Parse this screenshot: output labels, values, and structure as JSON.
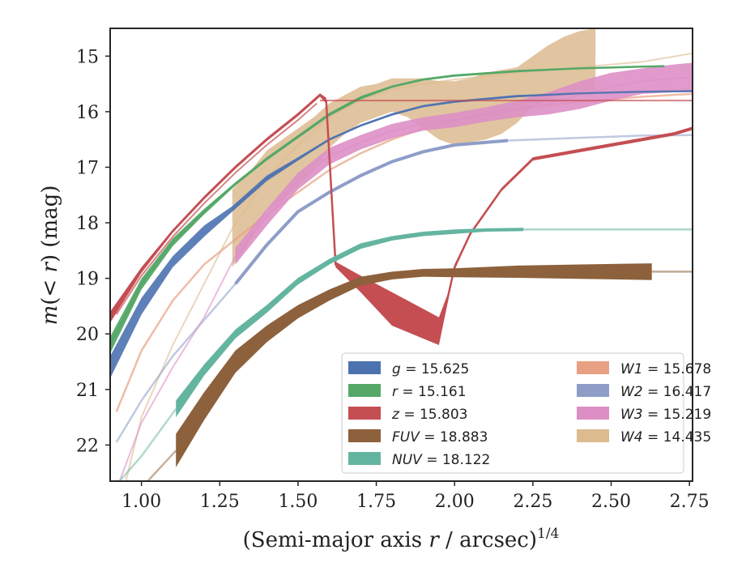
{
  "chart_data": {
    "type": "line",
    "title": "",
    "xlabel": "(Semi-major axis r / arcsec)^{1/4}",
    "xlabel_parts": {
      "main": "(Semi-major axis ",
      "var": "r",
      "mid": " / arcsec)",
      "exp": "1/4"
    },
    "ylabel": "m(<r) (mag)",
    "ylabel_parts": {
      "func": "m",
      "open": "(",
      "lt": "< ",
      "var": "r",
      "close": ")",
      "unit": " (mag)"
    },
    "xlim": [
      0.9,
      2.76
    ],
    "ylim": [
      22.65,
      14.5
    ],
    "y_inverted": true,
    "xticks": [
      "1.00",
      "1.25",
      "1.50",
      "1.75",
      "2.00",
      "2.25",
      "2.50",
      "2.75"
    ],
    "xtick_values": [
      1.0,
      1.25,
      1.5,
      1.75,
      2.0,
      2.25,
      2.5,
      2.75
    ],
    "yticks": [
      "15",
      "16",
      "17",
      "18",
      "19",
      "20",
      "21",
      "22"
    ],
    "ytick_values": [
      15,
      16,
      17,
      18,
      19,
      20,
      21,
      22
    ],
    "grid": false,
    "legend_position": "bottom-right",
    "series": [
      {
        "name": "g",
        "label_value": "15.625",
        "color": "#4c72b0",
        "x": [
          0.9,
          1.0,
          1.1,
          1.2,
          1.29,
          1.4,
          1.5,
          1.6,
          1.7,
          1.8,
          1.9,
          2.0,
          2.2,
          2.4,
          2.6,
          2.76
        ],
        "y": [
          20.6,
          19.5,
          18.7,
          18.15,
          17.75,
          17.2,
          16.85,
          16.5,
          16.25,
          16.05,
          15.9,
          15.82,
          15.72,
          15.67,
          15.64,
          15.63
        ],
        "band_upper": [
          20.4,
          19.35,
          18.6,
          18.05,
          17.7,
          17.15,
          16.82,
          16.48,
          16.23,
          16.03,
          15.88,
          15.8,
          15.7,
          15.66,
          15.63,
          15.62
        ],
        "band_lower": [
          20.8,
          19.65,
          18.8,
          18.25,
          17.8,
          17.25,
          16.88,
          16.52,
          16.27,
          16.07,
          15.92,
          15.84,
          15.74,
          15.68,
          15.65,
          15.64
        ],
        "dim_from_x": 1.29
      },
      {
        "name": "r",
        "label_value": "15.161",
        "color": "#55a868",
        "x": [
          0.9,
          1.0,
          1.1,
          1.2,
          1.3,
          1.4,
          1.5,
          1.6,
          1.7,
          1.8,
          1.9,
          2.0,
          2.2,
          2.4,
          2.6,
          2.67
        ],
        "y": [
          20.2,
          19.1,
          18.35,
          17.8,
          17.3,
          16.85,
          16.45,
          16.05,
          15.75,
          15.55,
          15.42,
          15.35,
          15.27,
          15.22,
          15.19,
          15.18
        ],
        "band_upper": [
          20.05,
          19.0,
          18.28,
          17.75,
          17.27,
          16.82,
          16.42,
          16.02,
          15.72,
          15.53,
          15.4,
          15.33,
          15.25,
          15.21,
          15.18,
          15.17
        ],
        "band_lower": [
          20.35,
          19.2,
          18.42,
          17.85,
          17.33,
          16.88,
          16.48,
          16.08,
          15.78,
          15.57,
          15.44,
          15.37,
          15.29,
          15.23,
          15.2,
          15.19
        ],
        "dim_from_x": 2.2
      },
      {
        "name": "z",
        "label_value": "15.803",
        "color": "#c44e52",
        "x": [
          0.9,
          1.0,
          1.1,
          1.2,
          1.3,
          1.4,
          1.5,
          1.57,
          1.59,
          1.62,
          1.7,
          1.8,
          1.95,
          1.98,
          2.0,
          2.05,
          2.1,
          2.15,
          2.25,
          2.4,
          2.55,
          2.7,
          2.76
        ],
        "y": [
          19.7,
          18.85,
          18.15,
          17.55,
          17.0,
          16.5,
          16.05,
          15.7,
          15.8,
          18.75,
          19.1,
          19.55,
          20.1,
          19.3,
          18.8,
          18.2,
          17.8,
          17.4,
          16.85,
          16.7,
          16.55,
          16.4,
          16.3
        ],
        "band_upper": [
          19.6,
          18.8,
          18.12,
          17.52,
          16.97,
          16.47,
          16.02,
          15.67,
          15.75,
          18.7,
          18.95,
          19.25,
          19.7,
          19.25,
          18.75,
          18.17,
          17.77,
          17.37,
          16.82,
          16.67,
          16.52,
          16.37,
          16.27
        ],
        "band_lower": [
          19.8,
          18.9,
          18.18,
          17.58,
          17.03,
          16.53,
          16.08,
          15.73,
          15.85,
          18.8,
          19.25,
          19.85,
          20.2,
          19.35,
          18.85,
          18.23,
          17.83,
          17.43,
          16.88,
          16.73,
          16.58,
          16.43,
          16.33
        ],
        "flat_line": {
          "y": 15.8,
          "from_x": 1.57,
          "to_x": 2.76
        },
        "secondary": {
          "x": [
            0.92,
            1.0,
            1.1,
            1.2,
            1.3,
            1.4,
            1.5,
            1.56
          ],
          "y": [
            19.65,
            18.95,
            18.25,
            17.65,
            17.1,
            16.6,
            16.15,
            15.85
          ]
        }
      },
      {
        "name": "FUV",
        "label_value": "18.883",
        "color": "#8c613c",
        "x": [
          1.11,
          1.2,
          1.3,
          1.4,
          1.5,
          1.6,
          1.7,
          1.8,
          1.9,
          2.0,
          2.2,
          2.4,
          2.63
        ],
        "y": [
          22.1,
          21.3,
          20.5,
          20.0,
          19.6,
          19.3,
          19.05,
          18.95,
          18.9,
          18.9,
          18.88,
          18.88,
          18.88
        ],
        "band_upper": [
          21.8,
          21.05,
          20.3,
          19.85,
          19.48,
          19.2,
          18.97,
          18.88,
          18.83,
          18.82,
          18.77,
          18.75,
          18.73
        ],
        "band_lower": [
          22.4,
          21.55,
          20.7,
          20.15,
          19.72,
          19.4,
          19.13,
          19.02,
          18.97,
          18.98,
          18.99,
          19.01,
          19.03
        ],
        "dim_lead": {
          "x": [
            1.02,
            1.11
          ],
          "y": [
            22.65,
            22.1
          ]
        },
        "dim_tail": {
          "from_x": 2.63,
          "to_x": 2.76,
          "y": 18.88
        }
      },
      {
        "name": "NUV",
        "label_value": "18.122",
        "color": "#64b5a0",
        "x": [
          1.11,
          1.2,
          1.3,
          1.4,
          1.5,
          1.6,
          1.7,
          1.8,
          1.9,
          2.0,
          2.1,
          2.22
        ],
        "y": [
          21.35,
          20.65,
          20.0,
          19.55,
          19.05,
          18.7,
          18.42,
          18.28,
          18.2,
          18.16,
          18.13,
          18.12
        ],
        "band_upper": [
          21.2,
          20.55,
          19.92,
          19.48,
          18.99,
          18.65,
          18.37,
          18.24,
          18.16,
          18.12,
          18.1,
          18.09
        ],
        "band_lower": [
          21.5,
          20.75,
          20.08,
          19.62,
          19.11,
          18.75,
          18.47,
          18.32,
          18.24,
          18.2,
          18.16,
          18.15
        ],
        "dim_lead": {
          "x": [
            0.93,
            1.0,
            1.11
          ],
          "y": [
            22.65,
            22.2,
            21.35
          ]
        },
        "dim_tail": {
          "from_x": 2.22,
          "to_x": 2.76,
          "y": 18.12
        }
      },
      {
        "name": "W1",
        "label_value": "15.678",
        "color": "#e8a082",
        "x": [
          0.92,
          1.0,
          1.1,
          1.2,
          1.3,
          1.4,
          1.5,
          1.6,
          1.7,
          1.8,
          1.9,
          2.0,
          2.2,
          2.4,
          2.6,
          2.76
        ],
        "y": [
          21.4,
          20.3,
          19.4,
          18.75,
          18.3,
          17.85,
          17.45,
          17.05,
          16.75,
          16.5,
          16.3,
          16.15,
          15.95,
          15.82,
          15.73,
          15.68
        ]
      },
      {
        "name": "W2",
        "label_value": "16.417",
        "color": "#8e9dc8",
        "x": [
          0.92,
          1.0,
          1.1,
          1.2,
          1.3,
          1.4,
          1.5,
          1.6,
          1.7,
          1.8,
          1.9,
          2.0,
          2.17,
          2.4,
          2.6,
          2.76
        ],
        "y": [
          21.95,
          21.2,
          20.4,
          19.75,
          19.1,
          18.4,
          17.8,
          17.45,
          17.15,
          16.9,
          16.72,
          16.6,
          16.52,
          16.47,
          16.43,
          16.42
        ],
        "emph_range": [
          1.29,
          2.17
        ]
      },
      {
        "name": "W3",
        "label_value": "15.219",
        "color": "#dd8fc5",
        "x": [
          0.93,
          1.0,
          1.1,
          1.2,
          1.3,
          1.4,
          1.5,
          1.6,
          1.7,
          1.8,
          1.9,
          2.0,
          2.1,
          2.2,
          2.3,
          2.4,
          2.5,
          2.6,
          2.7,
          2.76
        ],
        "y": [
          22.65,
          21.6,
          20.6,
          19.7,
          18.6,
          17.9,
          17.25,
          16.8,
          16.55,
          16.35,
          16.22,
          16.15,
          16.05,
          15.95,
          15.85,
          15.7,
          15.55,
          15.45,
          15.4,
          15.38
        ],
        "band_upper": [
          null,
          null,
          null,
          null,
          18.45,
          17.75,
          17.1,
          16.65,
          16.42,
          16.22,
          16.1,
          16.02,
          15.92,
          15.8,
          15.65,
          15.45,
          15.3,
          15.22,
          15.15,
          15.12
        ],
        "band_lower": [
          null,
          null,
          null,
          null,
          18.75,
          18.05,
          17.4,
          16.95,
          16.68,
          16.48,
          16.34,
          16.28,
          16.18,
          16.1,
          16.05,
          15.95,
          15.8,
          15.68,
          15.65,
          15.65
        ],
        "band_from_x": 1.3
      },
      {
        "name": "W4",
        "label_value": "14.435",
        "color": "#dcbb8f",
        "x": [
          0.95,
          1.0,
          1.1,
          1.2,
          1.29,
          1.4,
          1.5,
          1.6,
          1.7,
          1.8,
          1.9,
          2.0,
          2.2,
          2.4,
          2.6,
          2.76
        ],
        "y": [
          22.65,
          21.5,
          20.2,
          19.1,
          18.1,
          17.2,
          16.6,
          16.1,
          15.8,
          15.6,
          15.5,
          15.42,
          15.3,
          15.2,
          15.1,
          14.95
        ],
        "band_x": [
          1.29,
          1.35,
          1.4,
          1.5,
          1.55,
          1.6,
          1.65,
          1.7,
          1.75,
          1.8,
          1.85,
          1.9,
          1.95,
          2.0,
          2.05,
          2.1,
          2.15,
          2.2,
          2.25,
          2.3,
          2.35,
          2.4,
          2.45
        ],
        "band_upper": [
          17.4,
          17.05,
          16.7,
          16.3,
          16.1,
          15.85,
          15.7,
          15.55,
          15.5,
          15.4,
          15.4,
          15.4,
          15.45,
          15.45,
          15.4,
          15.3,
          15.25,
          15.2,
          15.0,
          14.8,
          14.65,
          14.55,
          14.5
        ],
        "band_lower": [
          18.8,
          18.3,
          17.8,
          17.35,
          17.05,
          16.65,
          16.4,
          16.2,
          16.1,
          16.0,
          16.1,
          16.3,
          16.5,
          16.6,
          16.55,
          16.5,
          16.4,
          16.2,
          15.9,
          15.8,
          15.7,
          15.65,
          15.6
        ]
      }
    ]
  },
  "legend": {
    "items": [
      {
        "name": "g",
        "value": "15.625",
        "color": "#4c72b0"
      },
      {
        "name": "r",
        "value": "15.161",
        "color": "#55a868"
      },
      {
        "name": "z",
        "value": "15.803",
        "color": "#c44e52"
      },
      {
        "name": "FUV",
        "value": "18.883",
        "color": "#8c613c"
      },
      {
        "name": "NUV",
        "value": "18.122",
        "color": "#64b5a0"
      },
      {
        "name": "W1",
        "value": "15.678",
        "color": "#e8a082"
      },
      {
        "name": "W2",
        "value": "16.417",
        "color": "#8e9dc8"
      },
      {
        "name": "W3",
        "value": "15.219",
        "color": "#dd8fc5"
      },
      {
        "name": "W4",
        "value": "14.435",
        "color": "#dcbb8f"
      }
    ]
  }
}
